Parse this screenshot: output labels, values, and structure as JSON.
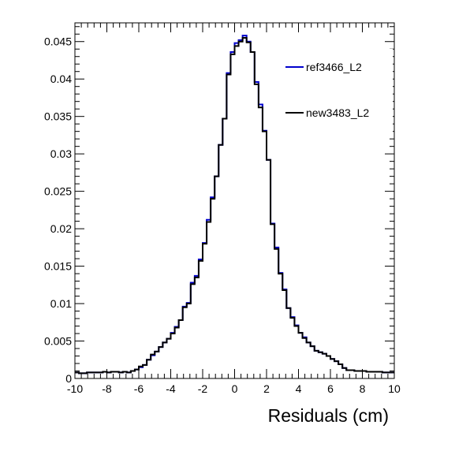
{
  "chart_data": {
    "type": "line",
    "style": "step-histogram",
    "title": "",
    "xlabel": "Residuals (cm)",
    "ylabel": "",
    "xlim": [
      -10,
      10
    ],
    "ylim": [
      0,
      0.0475
    ],
    "x_ticks": [
      -10,
      -8,
      -6,
      -4,
      -2,
      0,
      2,
      4,
      6,
      8,
      10
    ],
    "x_tick_labels": [
      "-10",
      "-8",
      "-6",
      "-4",
      "-2",
      "0",
      "2",
      "4",
      "6",
      "8",
      "10"
    ],
    "y_ticks": [
      0,
      0.005,
      0.01,
      0.015,
      0.02,
      0.025,
      0.03,
      0.035,
      0.04,
      0.045
    ],
    "y_tick_labels": [
      "0",
      "0.005",
      "0.01",
      "0.015",
      "0.02",
      "0.025",
      "0.03",
      "0.035",
      "0.04",
      "0.045"
    ],
    "grid": false,
    "legend_position": "top-right",
    "bin_width": 0.25,
    "x": [
      -10.0,
      -9.75,
      -9.5,
      -9.25,
      -9.0,
      -8.75,
      -8.5,
      -8.25,
      -8.0,
      -7.75,
      -7.5,
      -7.25,
      -7.0,
      -6.75,
      -6.5,
      -6.25,
      -6.0,
      -5.75,
      -5.5,
      -5.25,
      -5.0,
      -4.75,
      -4.5,
      -4.25,
      -4.0,
      -3.75,
      -3.5,
      -3.25,
      -3.0,
      -2.75,
      -2.5,
      -2.25,
      -2.0,
      -1.75,
      -1.5,
      -1.25,
      -1.0,
      -0.75,
      -0.5,
      -0.25,
      0.0,
      0.25,
      0.5,
      0.75,
      1.0,
      1.25,
      1.5,
      1.75,
      2.0,
      2.25,
      2.5,
      2.75,
      3.0,
      3.25,
      3.5,
      3.75,
      4.0,
      4.25,
      4.5,
      4.75,
      5.0,
      5.25,
      5.5,
      5.75,
      6.0,
      6.25,
      6.5,
      6.75,
      7.0,
      7.25,
      7.5,
      7.75,
      8.0,
      8.25,
      8.5,
      8.75,
      9.0,
      9.25,
      9.5,
      9.75
    ],
    "series": [
      {
        "name": "ref3466_L2",
        "color": "#0000cc",
        "values": [
          0.0008,
          0.0007,
          0.0007,
          0.0008,
          0.0008,
          0.0008,
          0.0008,
          0.0009,
          0.0008,
          0.0009,
          0.0009,
          0.0008,
          0.0009,
          0.0008,
          0.001,
          0.0012,
          0.0015,
          0.0018,
          0.0025,
          0.0031,
          0.0036,
          0.0042,
          0.0048,
          0.0053,
          0.0061,
          0.0069,
          0.0078,
          0.0096,
          0.0101,
          0.0128,
          0.0137,
          0.0159,
          0.0181,
          0.0212,
          0.0242,
          0.027,
          0.0312,
          0.0347,
          0.0408,
          0.0436,
          0.0448,
          0.0452,
          0.0458,
          0.045,
          0.0436,
          0.0396,
          0.0366,
          0.0331,
          0.0292,
          0.0207,
          0.0175,
          0.0141,
          0.0119,
          0.0094,
          0.0082,
          0.0071,
          0.0061,
          0.0055,
          0.0048,
          0.0043,
          0.0037,
          0.0035,
          0.0033,
          0.003,
          0.0026,
          0.0023,
          0.0019,
          0.0014,
          0.0011,
          0.0011,
          0.001,
          0.001,
          0.001,
          0.0009,
          0.0009,
          0.0009,
          0.0009,
          0.0008,
          0.0008,
          0.0008
        ]
      },
      {
        "name": "new3483_L2",
        "color": "#000000",
        "values": [
          0.0008,
          0.0007,
          0.0007,
          0.0008,
          0.0008,
          0.0008,
          0.0008,
          0.0009,
          0.0008,
          0.0009,
          0.0009,
          0.0008,
          0.0009,
          0.0008,
          0.001,
          0.0012,
          0.0016,
          0.0018,
          0.0025,
          0.0032,
          0.0036,
          0.0042,
          0.0048,
          0.0053,
          0.006,
          0.0068,
          0.0078,
          0.0095,
          0.01,
          0.0126,
          0.0135,
          0.0157,
          0.018,
          0.0209,
          0.024,
          0.027,
          0.0312,
          0.0347,
          0.0406,
          0.0433,
          0.0444,
          0.045,
          0.0455,
          0.0449,
          0.0436,
          0.0393,
          0.0362,
          0.033,
          0.0292,
          0.0206,
          0.0173,
          0.014,
          0.0118,
          0.0094,
          0.0081,
          0.007,
          0.0061,
          0.0054,
          0.0048,
          0.0043,
          0.0037,
          0.0035,
          0.0033,
          0.003,
          0.0026,
          0.0023,
          0.0019,
          0.0014,
          0.0011,
          0.0011,
          0.001,
          0.001,
          0.001,
          0.0009,
          0.0009,
          0.0009,
          0.0009,
          0.0008,
          0.0008,
          0.0008
        ]
      }
    ],
    "legend": [
      {
        "label": "ref3466_L2",
        "color": "#0000cc"
      },
      {
        "label": "new3483_L2",
        "color": "#000000"
      }
    ]
  }
}
